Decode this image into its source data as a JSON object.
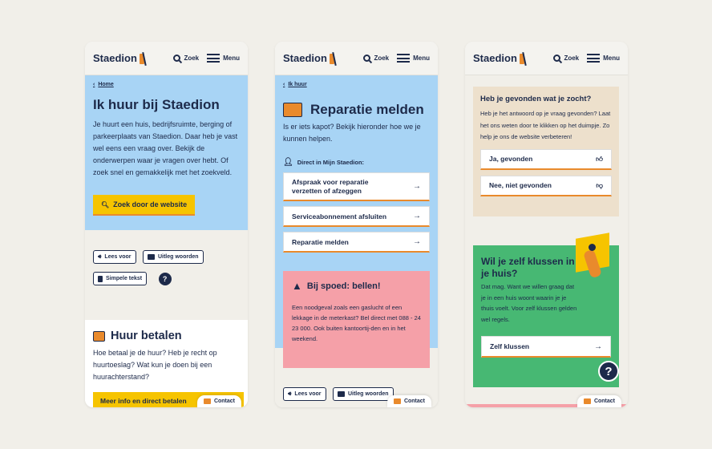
{
  "header": {
    "logo": "Staedion",
    "search": "Zoek",
    "menu": "Menu"
  },
  "contact": "Contact",
  "phone1": {
    "crumb": "Home",
    "title": "Ik huur bij Staedion",
    "intro": "Je huurt een huis, bedrijfsruimte, berging of parkeerplaats van Staedion. Daar heb je vast wel eens een vraag over. Bekijk de onderwerpen waar je vragen over hebt. Of zoek snel en gemakkelijk met het zoekveld.",
    "search_button": "Zoek door de website",
    "tools": {
      "read": "Lees voor",
      "explain": "Uitleg woorden",
      "simple": "Simpele tekst",
      "help": "?"
    },
    "section_title": "Huur betalen",
    "section_text": "Hoe betaal je de huur? Heb je recht op huurtoeslag? Wat kun je doen bij een huurachterstand?",
    "cta": "Meer info en direct betalen"
  },
  "phone2": {
    "crumb": "Ik huur",
    "title": "Reparatie melden",
    "intro": "Is er iets kapot? Bekijk hieronder hoe we je kunnen helpen.",
    "direct_label": "Direct in Mijn Staedion:",
    "links": [
      "Afspraak voor reparatie verzetten of afzeggen",
      "Serviceabonnement afsluiten",
      "Reparatie melden"
    ],
    "urgent_title": "Bij spoed: bellen!",
    "urgent_text": "Een noodgeval zoals een gaslucht of een lekkage in de meterkast? Bel direct met 088 - 24 23 000. Ook buiten kantoortij-den en in het weekend.",
    "tools": {
      "read": "Lees voor",
      "explain": "Uitleg woorden"
    }
  },
  "phone3": {
    "feedback_title": "Heb je gevonden wat je zocht?",
    "feedback_text": "Heb je het antwoord op je vraag gevonden? Laat het ons weten door te klikken op het duimpje. Zo help je ons de website verbeteren!",
    "yes": "Ja, gevonden",
    "no": "Nee, niet gevonden",
    "diy_title": "Wil je zelf klussen in je huis?",
    "diy_text": "Dat mag. Want we willen graag dat je in een huis woont waarin je je thuis voelt. Voor zelf klussen gelden wel regels.",
    "diy_button": "Zelf klussen",
    "help": "?"
  },
  "colors": {
    "blue": "#a8d4f5",
    "yellow": "#f6c400",
    "navy": "#1d2a4a",
    "orange": "#e98a2c",
    "pink": "#f5a0a8",
    "green": "#47b873",
    "beige": "#ede0cc"
  }
}
